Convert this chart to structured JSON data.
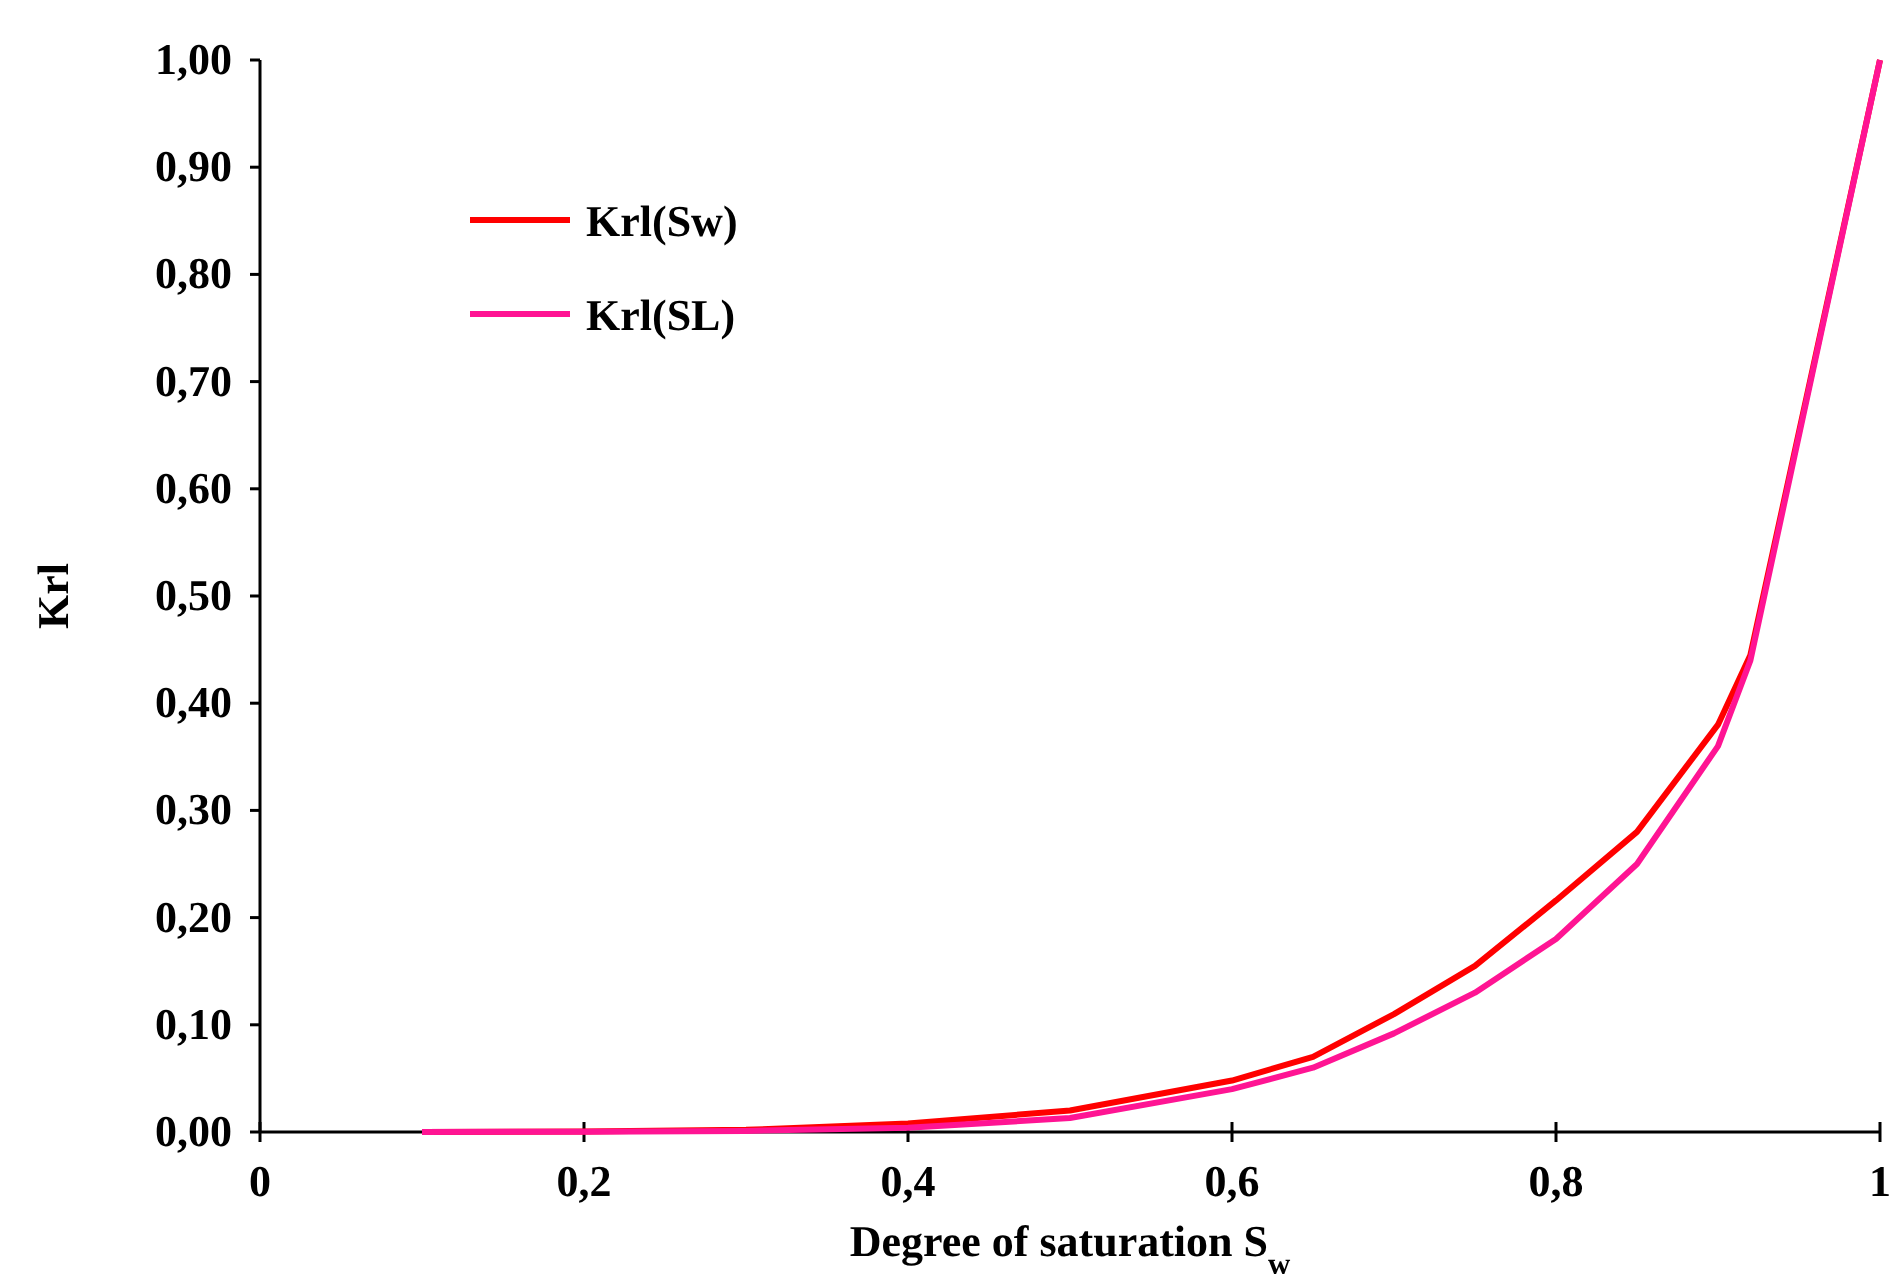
{
  "chart_data": {
    "type": "line",
    "xlabel": "Degree of saturation S$_{w}$",
    "ylabel": "Krl",
    "xlim": [
      0,
      1
    ],
    "xticks": [
      0,
      {
        "value": 0.2,
        "label": "0,2"
      },
      {
        "value": 0.4,
        "label": "0,4"
      },
      {
        "value": 0.6,
        "label": "0,6"
      },
      {
        "value": 0.8,
        "label": "0,8"
      },
      1
    ],
    "ylim": [
      0,
      1
    ],
    "yticks": [
      {
        "value": 0,
        "label": "0,00"
      },
      {
        "value": 0.1,
        "label": "0,10"
      },
      {
        "value": 0.2,
        "label": "0,20"
      },
      {
        "value": 0.3,
        "label": "0,30"
      },
      {
        "value": 0.4,
        "label": "0,40"
      },
      {
        "value": 0.5,
        "label": "0,50"
      },
      {
        "value": 0.6,
        "label": "0,60"
      },
      {
        "value": 0.7,
        "label": "0,70"
      },
      {
        "value": 0.8,
        "label": "0,80"
      },
      {
        "value": 0.9,
        "label": "0,90"
      },
      {
        "value": 1,
        "label": "1,00"
      }
    ],
    "x": [
      0.1,
      0.2,
      0.3,
      0.4,
      0.5,
      0.6,
      0.65,
      0.7,
      0.75,
      0.8,
      0.85,
      0.9,
      0.92,
      1
    ],
    "grid": false,
    "legend": "top left",
    "marker": "none",
    "line_style": "solid",
    "series": [
      {
        "name": "Krl(Sw)",
        "color": "#ff0000",
        "values": [
          0,
          0.0005,
          0.002,
          0.008,
          0.02,
          0.048,
          0.07,
          0.11,
          0.155,
          0.216,
          0.28,
          0.38,
          0.445,
          1
        ]
      },
      {
        "name": "Krl(SL)",
        "color": "#ff1493",
        "values": [
          0,
          0.0003,
          0.001,
          0.004,
          0.013,
          0.04,
          0.06,
          0.092,
          0.13,
          0.18,
          0.25,
          0.36,
          0.44,
          1
        ]
      }
    ]
  }
}
